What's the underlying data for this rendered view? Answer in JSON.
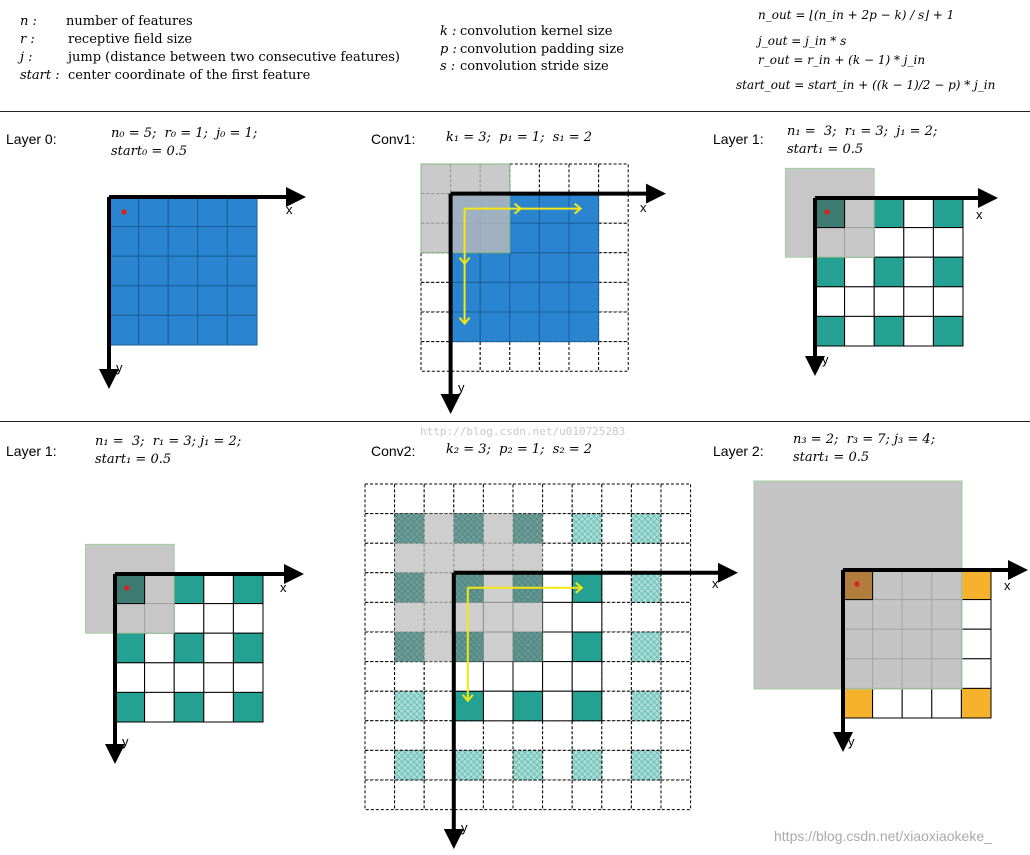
{
  "legend": [
    {
      "symbol": "n :",
      "text": "number of features"
    },
    {
      "symbol": "r :",
      "text": "receptive field size"
    },
    {
      "symbol": "j :",
      "text": "jump (distance between two consecutive features)"
    },
    {
      "symbol": "start :",
      "text": "center coordinate of the first feature"
    }
  ],
  "conv_legend": [
    {
      "symbol": "k :",
      "text": "convolution kernel size"
    },
    {
      "symbol": "p :",
      "text": "convolution padding size"
    },
    {
      "symbol": "s :",
      "text": "convolution stride size"
    }
  ],
  "formulas": {
    "n_out": "n_out = ⌊(n_in + 2p − k) / s⌋ + 1",
    "j_out": "j_out = j_in * s",
    "r_out": "r_out = r_in + (k − 1) * j_in",
    "start_out": "start_out = start_in + ((k − 1)/2 − p) * j_in"
  },
  "panels": {
    "layer0": {
      "title": "Layer 0:",
      "line1": "n₀ = 5;  r₀ = 1;  j₀ = 1;",
      "line2": "start₀ = 0.5"
    },
    "conv1": {
      "title": "Conv1:",
      "line1": "k₁ = 3;  p₁ = 1;  s₁ = 2"
    },
    "layer1_top": {
      "title": "Layer 1:",
      "line1": "n₁ =  3;  r₁ = 3;  j₁ = 2;",
      "line2": "start₁ = 0.5"
    },
    "layer1_bottom": {
      "title": "Layer 1:",
      "line1": "n₁ =  3;  r₁ = 3; j₁ = 2;",
      "line2": "start₁ = 0.5"
    },
    "conv2": {
      "title": "Conv2:",
      "line1": "k₂ = 3;  p₂ = 1;  s₂ = 2"
    },
    "layer2": {
      "title": "Layer 2:",
      "line1": "n₃ = 2;  r₃ = 7; j₃ = 4;",
      "line2": "start₁ = 0.5"
    }
  },
  "axes": {
    "x": "x",
    "y": "y"
  },
  "watermark_center": "http://blog.csdn.net/u010725283",
  "watermark_corner": "https://blog.csdn.net/xiaoxiaokeke_",
  "colors": {
    "blue": "#2a84cf",
    "teal": "#24a193",
    "gray": "#bdbdbd",
    "orange": "#f6b12d",
    "yellow": "#f4e713",
    "red_dot": "#e0201b",
    "hatch": "#9fd9d3"
  }
}
